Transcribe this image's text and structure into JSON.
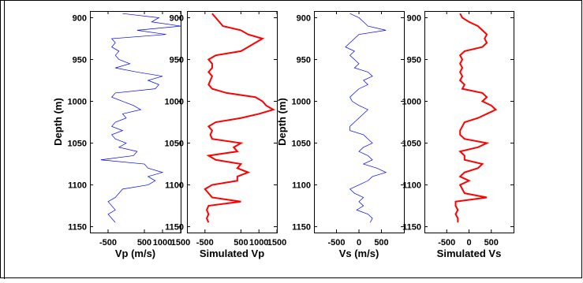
{
  "chart_data": [
    {
      "type": "line",
      "xlabel": "Vp (m/s)",
      "ylabel": "Depth (m)",
      "color": "#0000ff",
      "line_width": 0.7,
      "xlim": [
        -1000,
        1500
      ],
      "xticks": [
        -500,
        500,
        1000,
        1500
      ],
      "ylim": [
        892,
        1157
      ],
      "yticks": [
        900,
        950,
        1000,
        1050,
        1100,
        1150
      ],
      "yreverse": true,
      "y": [
        895,
        900,
        905,
        910,
        915,
        920,
        925,
        930,
        935,
        940,
        945,
        950,
        955,
        960,
        965,
        970,
        975,
        980,
        985,
        990,
        995,
        1000,
        1005,
        1010,
        1015,
        1020,
        1025,
        1030,
        1035,
        1040,
        1045,
        1050,
        1055,
        1060,
        1065,
        1070,
        1075,
        1080,
        1085,
        1090,
        1095,
        1100,
        1105,
        1110,
        1115,
        1120,
        1125,
        1130,
        1135,
        1140,
        1145
      ],
      "values": [
        -100,
        900,
        700,
        1500,
        300,
        1100,
        -400,
        -300,
        -400,
        -200,
        -300,
        -200,
        100,
        -300,
        300,
        1000,
        600,
        900,
        800,
        -300,
        -400,
        -100,
        200,
        400,
        -100,
        0,
        -300,
        -400,
        -100,
        -400,
        -300,
        0,
        -200,
        300,
        200,
        -700,
        500,
        600,
        1000,
        600,
        800,
        600,
        -100,
        -200,
        -300,
        -500,
        -400,
        -300,
        -500,
        -400,
        -300
      ]
    },
    {
      "type": "line",
      "xlabel": "Simulated Vp",
      "color": "#ff0000",
      "line_width": 2,
      "xlim": [
        -1000,
        1500
      ],
      "xticks": [
        -500,
        500,
        1000,
        1500
      ],
      "ylim": [
        892,
        1157
      ],
      "yticks": [
        900,
        950,
        1000,
        1050,
        1100,
        1150
      ],
      "yreverse": true,
      "y": [
        895,
        900,
        905,
        910,
        915,
        920,
        925,
        930,
        935,
        940,
        945,
        950,
        955,
        960,
        965,
        970,
        975,
        980,
        985,
        990,
        995,
        1000,
        1005,
        1010,
        1015,
        1020,
        1025,
        1030,
        1035,
        1040,
        1045,
        1050,
        1055,
        1060,
        1065,
        1070,
        1075,
        1080,
        1085,
        1090,
        1095,
        1100,
        1105,
        1110,
        1115,
        1120,
        1125,
        1130,
        1135,
        1140,
        1145
      ],
      "values": [
        -300,
        -200,
        -100,
        0,
        500,
        700,
        1100,
        900,
        700,
        500,
        -200,
        -400,
        -300,
        -300,
        -400,
        -300,
        -350,
        -400,
        -300,
        100,
        900,
        1100,
        1200,
        1400,
        1000,
        500,
        -200,
        -400,
        -300,
        -350,
        -300,
        500,
        300,
        400,
        -400,
        -200,
        500,
        400,
        700,
        400,
        400,
        -300,
        -500,
        -400,
        -300,
        500,
        -400,
        -450,
        -400,
        -450,
        -400
      ]
    },
    {
      "type": "line",
      "xlabel": "Vs (m/s)",
      "ylabel": "Depth (m)",
      "color": "#0000ff",
      "line_width": 0.7,
      "xlim": [
        -1000,
        1000
      ],
      "xticks": [
        -500,
        0,
        500
      ],
      "ylim": [
        892,
        1157
      ],
      "yticks": [
        900,
        950,
        1000,
        1050,
        1100,
        1150
      ],
      "yreverse": true,
      "y": [
        895,
        900,
        905,
        910,
        915,
        920,
        925,
        930,
        935,
        940,
        945,
        950,
        955,
        960,
        965,
        970,
        975,
        980,
        985,
        990,
        995,
        1000,
        1005,
        1010,
        1015,
        1020,
        1025,
        1030,
        1035,
        1040,
        1045,
        1050,
        1055,
        1060,
        1065,
        1070,
        1075,
        1080,
        1085,
        1090,
        1095,
        1100,
        1105,
        1110,
        1115,
        1120,
        1125,
        1130,
        1135,
        1140,
        1145
      ],
      "values": [
        -200,
        0,
        100,
        200,
        600,
        0,
        -100,
        -200,
        -300,
        -100,
        -200,
        -100,
        0,
        -100,
        200,
        300,
        100,
        200,
        0,
        -100,
        -200,
        -150,
        0,
        200,
        100,
        0,
        -100,
        -200,
        -200,
        100,
        200,
        300,
        100,
        0,
        200,
        300,
        100,
        400,
        600,
        300,
        200,
        0,
        -200,
        -100,
        100,
        0,
        100,
        -50,
        200,
        300,
        250
      ]
    },
    {
      "type": "line",
      "xlabel": "Simulated Vs",
      "color": "#ff0000",
      "line_width": 2,
      "xlim": [
        -1000,
        1000
      ],
      "xticks": [
        -500,
        0,
        500
      ],
      "ylim": [
        892,
        1157
      ],
      "yticks": [
        900,
        950,
        1000,
        1050,
        1100,
        1150
      ],
      "yreverse": true,
      "y": [
        895,
        900,
        905,
        910,
        915,
        920,
        925,
        930,
        935,
        940,
        945,
        950,
        955,
        960,
        965,
        970,
        975,
        980,
        985,
        990,
        995,
        1000,
        1005,
        1010,
        1015,
        1020,
        1025,
        1030,
        1035,
        1040,
        1045,
        1050,
        1055,
        1060,
        1065,
        1070,
        1075,
        1080,
        1085,
        1090,
        1095,
        1100,
        1105,
        1110,
        1115,
        1120,
        1125,
        1130,
        1135,
        1140,
        1145
      ],
      "values": [
        -200,
        -150,
        0,
        200,
        300,
        400,
        350,
        400,
        300,
        -100,
        -200,
        -150,
        -200,
        -150,
        -200,
        -150,
        -200,
        -100,
        -150,
        300,
        400,
        300,
        500,
        600,
        400,
        200,
        -100,
        -150,
        -200,
        -200,
        -100,
        400,
        200,
        -200,
        -100,
        -100,
        300,
        200,
        -100,
        -200,
        0,
        -200,
        -150,
        -100,
        400,
        -300,
        -300,
        -250,
        -300,
        -250,
        -250
      ]
    }
  ]
}
